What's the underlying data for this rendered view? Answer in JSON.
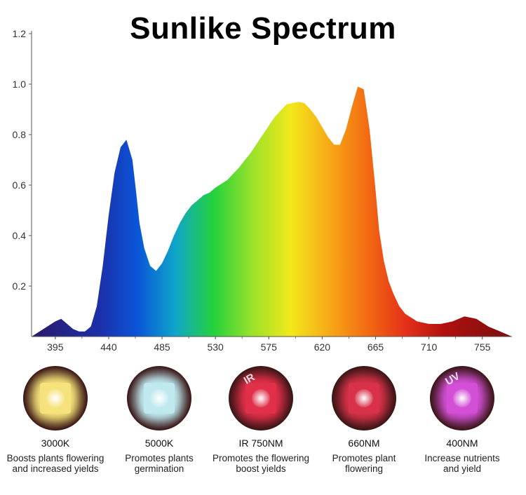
{
  "chart_data": {
    "type": "area",
    "title": "Sunlike Spectrum",
    "xlabel": "",
    "ylabel": "",
    "xlim": [
      375,
      780
    ],
    "ylim": [
      0,
      1.2
    ],
    "x_ticks": [
      "395",
      "440",
      "485",
      "530",
      "575",
      "620",
      "665",
      "710",
      "755"
    ],
    "y_ticks": [
      "0.2",
      "0.4",
      "0.6",
      "0.8",
      "1.0",
      "1.2"
    ],
    "grid": false,
    "series": [
      {
        "x": [
          375,
          385,
          395,
          400,
          405,
          410,
          415,
          420,
          425,
          430,
          435,
          440,
          445,
          450,
          455,
          460,
          463,
          466,
          470,
          475,
          480,
          485,
          490,
          495,
          500,
          505,
          510,
          515,
          520,
          525,
          530,
          540,
          550,
          560,
          570,
          580,
          590,
          600,
          605,
          610,
          615,
          620,
          625,
          630,
          635,
          640,
          645,
          650,
          655,
          660,
          665,
          668,
          672,
          676,
          680,
          685,
          690,
          700,
          710,
          720,
          730,
          740,
          750,
          760,
          770,
          780
        ],
        "y": [
          0.0,
          0.03,
          0.06,
          0.07,
          0.05,
          0.03,
          0.02,
          0.02,
          0.04,
          0.12,
          0.28,
          0.48,
          0.65,
          0.75,
          0.78,
          0.7,
          0.58,
          0.45,
          0.35,
          0.28,
          0.26,
          0.29,
          0.34,
          0.4,
          0.45,
          0.49,
          0.52,
          0.54,
          0.56,
          0.57,
          0.59,
          0.62,
          0.67,
          0.73,
          0.8,
          0.87,
          0.92,
          0.93,
          0.925,
          0.9,
          0.87,
          0.83,
          0.79,
          0.76,
          0.76,
          0.82,
          0.91,
          0.99,
          0.98,
          0.82,
          0.58,
          0.42,
          0.3,
          0.22,
          0.17,
          0.12,
          0.09,
          0.06,
          0.05,
          0.05,
          0.06,
          0.08,
          0.07,
          0.04,
          0.02,
          0.0
        ]
      }
    ]
  },
  "leds": [
    {
      "label": "3000K",
      "desc": [
        "Boosts plants flowering",
        "and increased yields"
      ],
      "color": "#f5e27a",
      "icon": "led-chip-icon"
    },
    {
      "label": "5000K",
      "desc": [
        "Promotes plants",
        "germination"
      ],
      "color": "#bfe9ee",
      "icon": "led-chip-icon"
    },
    {
      "label": "IR 750NM",
      "desc": [
        "Promotes the flowering",
        "boost yields"
      ],
      "color": "#e0304a",
      "icon": "led-chip-icon",
      "overlay": "IR"
    },
    {
      "label": "660NM",
      "desc": [
        "Promotes plant",
        "flowering"
      ],
      "color": "#d8324a",
      "icon": "led-chip-icon"
    },
    {
      "label": "400NM",
      "desc": [
        "Increase nutrients",
        "and yield"
      ],
      "color": "#d24fd6",
      "icon": "led-chip-icon",
      "overlay": "UV"
    }
  ]
}
